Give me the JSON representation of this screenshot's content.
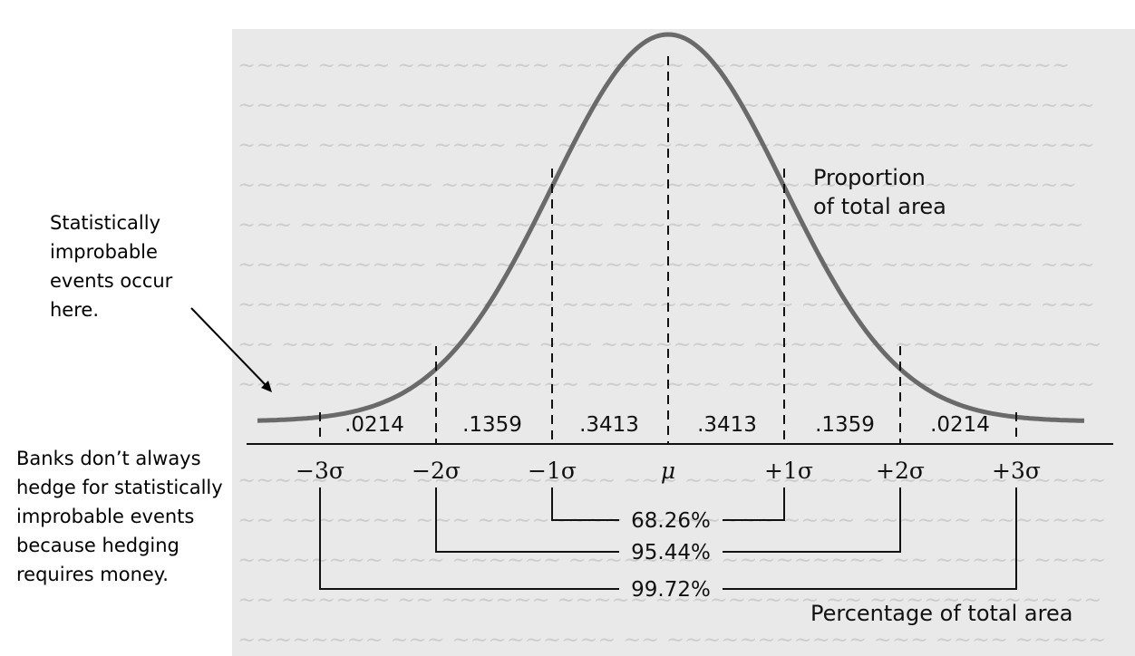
{
  "notes": {
    "left_top": "Statistically\nimprobable\nevents occur\nhere.",
    "left_bottom": "Banks don’t always\nhedge for statistically\nimprobable events\nbecause hedging\nrequires money."
  },
  "figure": {
    "curve_label": "Proportion\nof total area",
    "bottom_label": "Percentage of total area",
    "axis_ticks": [
      "−3σ",
      "−2σ",
      "−1σ",
      "μ",
      "+1σ",
      "+2σ",
      "+3σ"
    ],
    "area_proportions": [
      ".0214",
      ".1359",
      ".3413",
      ".3413",
      ".1359",
      ".0214"
    ],
    "percentages": [
      "68.26%",
      "95.44%",
      "99.72%"
    ],
    "colors": {
      "curve": "#6a6a6a",
      "page_background": "#e9e9e9",
      "bleed_text": "#c9c9c9",
      "ink": "#111111"
    }
  }
}
